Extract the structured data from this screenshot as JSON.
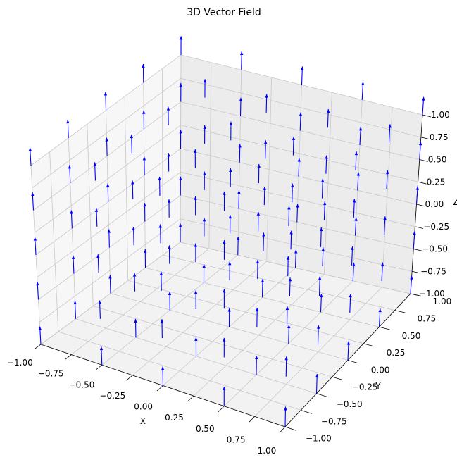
{
  "chart_data": {
    "type": "quiver3d",
    "title": "3D Vector Field",
    "xlabel": "X",
    "ylabel": "Y",
    "zlabel": "Z",
    "xlim": [
      -1.0,
      1.0
    ],
    "ylim": [
      -1.0,
      1.0
    ],
    "zlim": [
      -1.0,
      1.0
    ],
    "xticks": [
      "−1.00",
      "−0.75",
      "−0.50",
      "−0.25",
      "0.00",
      "0.25",
      "0.50",
      "0.75",
      "1.00"
    ],
    "yticks": [
      "−1.00",
      "−0.75",
      "−0.50",
      "−0.25",
      "0.00",
      "0.25",
      "0.50",
      "0.75",
      "1.00"
    ],
    "zticks": [
      "−1.00",
      "−0.75",
      "−0.50",
      "−0.25",
      "0.00",
      "0.25",
      "0.50",
      "0.75",
      "1.00"
    ],
    "grid": true,
    "arrow_color": "#0000ff",
    "grid_points_per_axis": 5,
    "grid_values": [
      -1.0,
      -0.5,
      0.0,
      0.5,
      1.0
    ],
    "vector": {
      "u": 0.0,
      "v": 0.0,
      "w": 1.0
    },
    "arrow_length": 0.2
  }
}
